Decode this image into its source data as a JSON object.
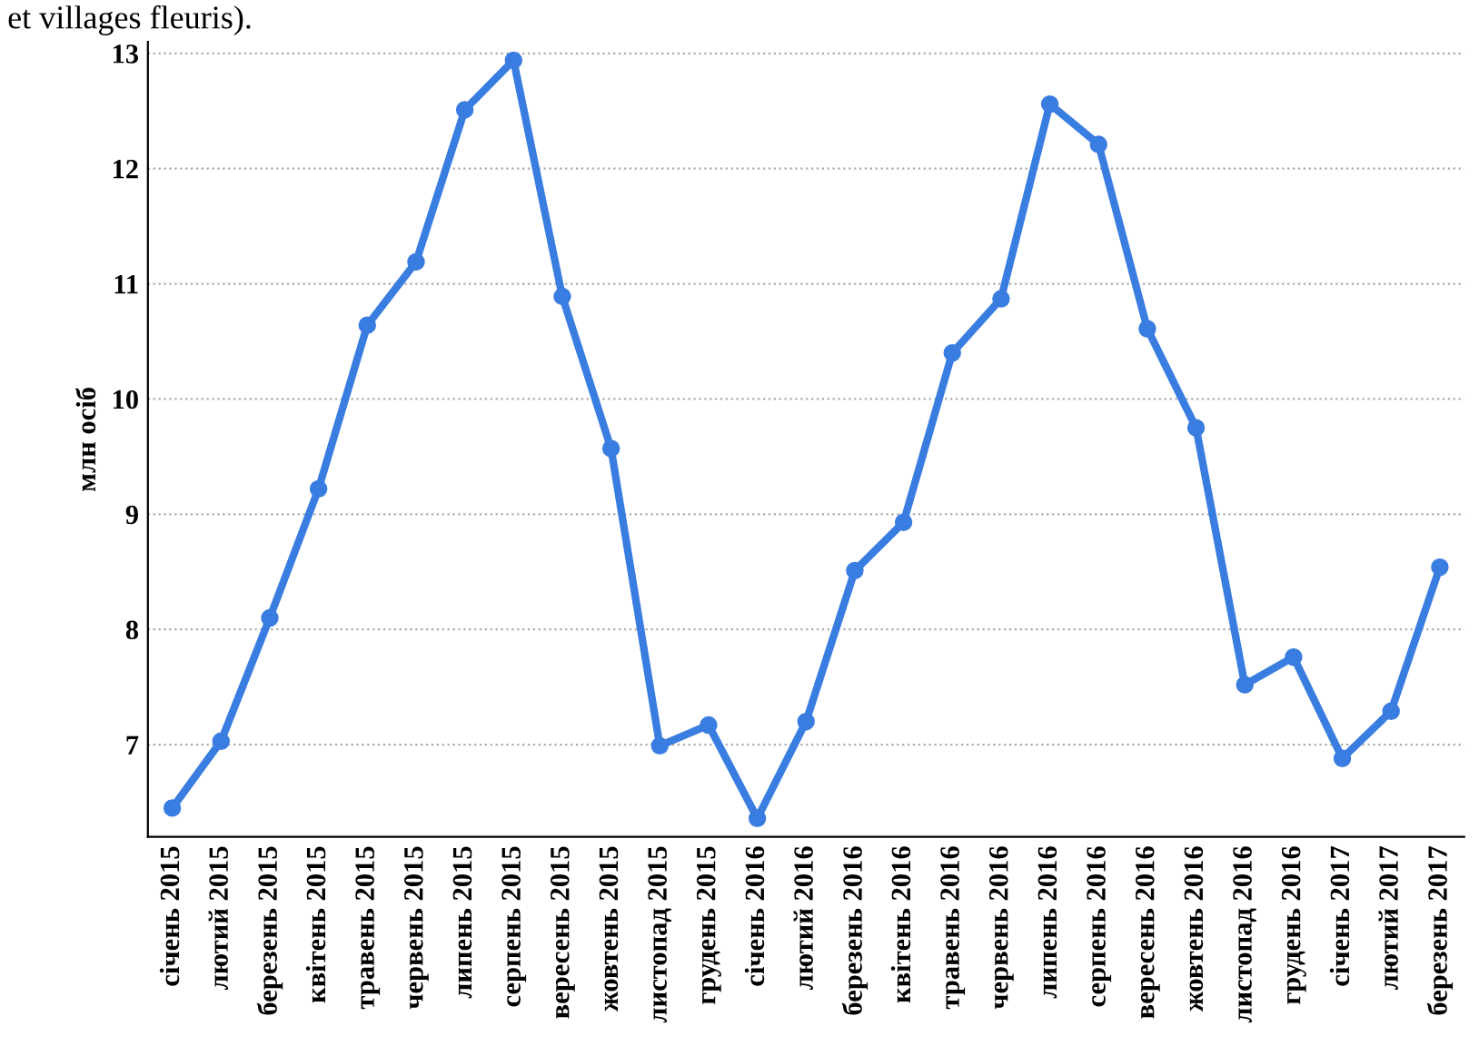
{
  "chart_data": {
    "type": "line",
    "ylabel": "млн осіб",
    "annotations": [
      "et villages fleuris)."
    ],
    "categories": [
      "січень 2015",
      "лютий 2015",
      "березень 2015",
      "квітень 2015",
      "травень 2015",
      "червень 2015",
      "липень 2015",
      "серпень 2015",
      "вересень 2015",
      "жовтень 2015",
      "листопад 2015",
      "грудень 2015",
      "січень 2016",
      "лютий 2016",
      "березень 2016",
      "квітень 2016",
      "травень 2016",
      "червень 2016",
      "липень 2016",
      "серпень 2016",
      "вересень 2016",
      "жовтень 2016",
      "листопад 2016",
      "грудень 2016",
      "січень 2017",
      "лютий 2017",
      "березень 2017"
    ],
    "series": [
      {
        "color": "#3a7de0",
        "values": [
          6.45,
          7.03,
          8.1,
          9.22,
          10.64,
          11.19,
          12.51,
          12.94,
          10.89,
          9.57,
          6.99,
          7.17,
          6.36,
          7.2,
          8.51,
          8.93,
          10.4,
          10.87,
          12.56,
          12.21,
          10.61,
          9.75,
          7.52,
          7.76,
          6.88,
          7.29,
          8.54
        ]
      }
    ],
    "ylim": [
      6.2,
      13.1
    ],
    "yticks": [
      7,
      8,
      9,
      10,
      11,
      12,
      13
    ],
    "grid": "y",
    "marker": "circle",
    "line_style": "solid",
    "legend": false
  }
}
